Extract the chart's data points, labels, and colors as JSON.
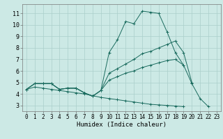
{
  "x": [
    0,
    1,
    2,
    3,
    4,
    5,
    6,
    7,
    8,
    9,
    10,
    11,
    12,
    13,
    14,
    15,
    16,
    17,
    18,
    19,
    20,
    21,
    22,
    23
  ],
  "line1": [
    4.4,
    4.9,
    4.9,
    4.9,
    4.4,
    4.5,
    4.5,
    4.1,
    3.8,
    4.3,
    7.6,
    8.7,
    10.3,
    10.1,
    11.2,
    11.1,
    11.0,
    9.4,
    7.6,
    6.5,
    4.9,
    3.6,
    2.9,
    null
  ],
  "line2": [
    4.4,
    4.9,
    4.9,
    4.9,
    4.4,
    4.5,
    4.5,
    4.1,
    3.8,
    4.3,
    5.8,
    6.2,
    6.6,
    7.0,
    7.5,
    7.7,
    8.0,
    8.3,
    8.6,
    7.6,
    5.0,
    null,
    null,
    null
  ],
  "line3": [
    4.4,
    4.9,
    4.9,
    4.9,
    4.4,
    4.5,
    4.5,
    4.1,
    3.8,
    4.3,
    5.2,
    5.5,
    5.8,
    6.0,
    6.3,
    6.5,
    6.7,
    6.9,
    7.0,
    6.5,
    null,
    null,
    null,
    null
  ],
  "line4": [
    4.4,
    4.6,
    4.5,
    4.4,
    4.3,
    4.2,
    4.1,
    4.0,
    3.85,
    3.7,
    3.6,
    3.5,
    3.4,
    3.3,
    3.2,
    3.1,
    3.05,
    3.0,
    2.95,
    2.9,
    null,
    null,
    null,
    null
  ],
  "bg_color": "#cce9e5",
  "grid_color": "#aacfca",
  "line_color": "#1a6b5e",
  "xlabel": "Humidex (Indice chaleur)",
  "ylim": [
    2.5,
    11.8
  ],
  "xlim": [
    -0.5,
    23.5
  ],
  "yticks": [
    3,
    4,
    5,
    6,
    7,
    8,
    9,
    10,
    11
  ],
  "xticks": [
    0,
    1,
    2,
    3,
    4,
    5,
    6,
    7,
    8,
    9,
    10,
    11,
    12,
    13,
    14,
    15,
    16,
    17,
    18,
    19,
    20,
    21,
    22,
    23
  ],
  "xlabel_fontsize": 6.5,
  "tick_fontsize": 5.5,
  "ytick_fontsize": 6.0
}
